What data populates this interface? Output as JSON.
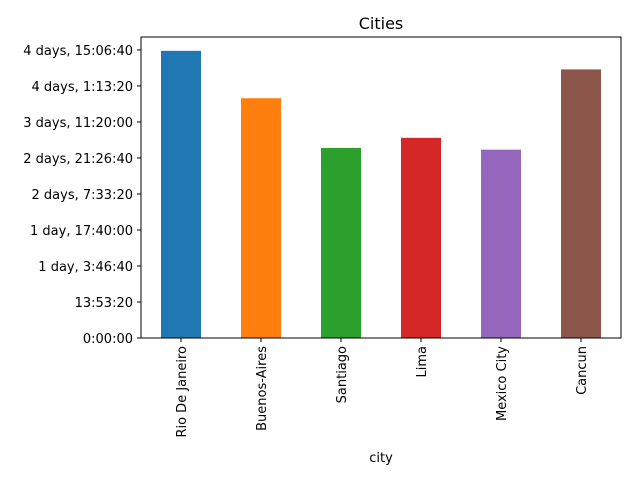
{
  "chart_data": {
    "type": "bar",
    "title": "Cities",
    "xlabel": "city",
    "ylabel": "",
    "categories": [
      "Rio De Janeiro",
      "Buenos-Aires",
      "Santiago",
      "Lima",
      "Mexico City",
      "Cancun"
    ],
    "values_seconds": [
      398800,
      333000,
      264000,
      278000,
      261500,
      373000
    ],
    "ylim_seconds": [
      0,
      418000
    ],
    "yticks_seconds": [
      0,
      50000,
      100000,
      150000,
      200000,
      250000,
      300000,
      350000,
      400000
    ],
    "ytick_labels": [
      "0:00:00",
      "13:53:20",
      "1 day, 3:46:40",
      "1 day, 17:40:00",
      "2 days, 7:33:20",
      "2 days, 21:26:40",
      "3 days, 11:20:00",
      "4 days, 1:13:20",
      "4 days, 15:06:40"
    ],
    "colors": [
      "#1f77b4",
      "#ff7f0e",
      "#2ca02c",
      "#d62728",
      "#9467bd",
      "#8c564b"
    ],
    "grid": false,
    "legend": "none"
  }
}
